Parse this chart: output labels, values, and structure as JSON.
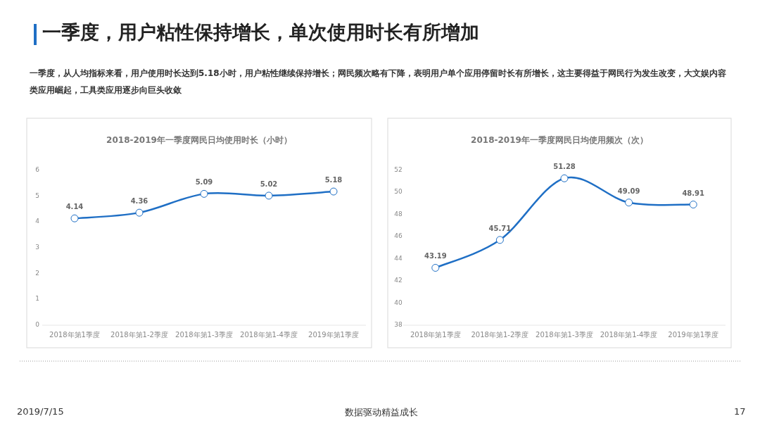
{
  "chart_data": [
    {
      "type": "line",
      "title": "2018-2019年一季度网民日均使用时长（小时）",
      "categories": [
        "2018年第1季度",
        "2018年第1-2季度",
        "2018年第1-3季度",
        "2018年第1-4季度",
        "2019年第1季度"
      ],
      "series": [
        {
          "color": "#1f6fc5",
          "values": [
            4.14,
            4.36,
            5.09,
            5.02,
            5.18
          ]
        }
      ],
      "ylim": [
        0,
        6
      ],
      "yticks": [
        0,
        1,
        2,
        3,
        4,
        5,
        6
      ],
      "grid": false,
      "marker": "circle",
      "line_style": "solid",
      "data_labels": true,
      "annotations": [
        "一季度，用户粘性保持增长，单次使用时长有所增加",
        "一季度，从人均指标来看，用户使用时长达到5.18小时，用户粘性继续保持增长；网民频次略有下降，表明用户单个应用停留时长有所增长，这主要得益于网民行为发生改变，大文娱内容类应用崛起，工具类应用逐步向巨头收敛"
      ]
    },
    {
      "type": "line",
      "title": "2018-2019年一季度网民日均使用频次（次）",
      "categories": [
        "2018年第1季度",
        "2018年第1-2季度",
        "2018年第1-3季度",
        "2018年第1-4季度",
        "2019年第1季度"
      ],
      "series": [
        {
          "color": "#1f6fc5",
          "values": [
            43.19,
            45.71,
            51.28,
            49.09,
            48.91
          ]
        }
      ],
      "ylim": [
        38,
        52
      ],
      "yticks": [
        38,
        40,
        42,
        44,
        46,
        48,
        50,
        52
      ],
      "grid": false,
      "marker": "circle",
      "line_style": "solid",
      "data_labels": true,
      "annotations": [
        "2019/7/15",
        "数据驱动精益成长",
        "17"
      ]
    }
  ]
}
